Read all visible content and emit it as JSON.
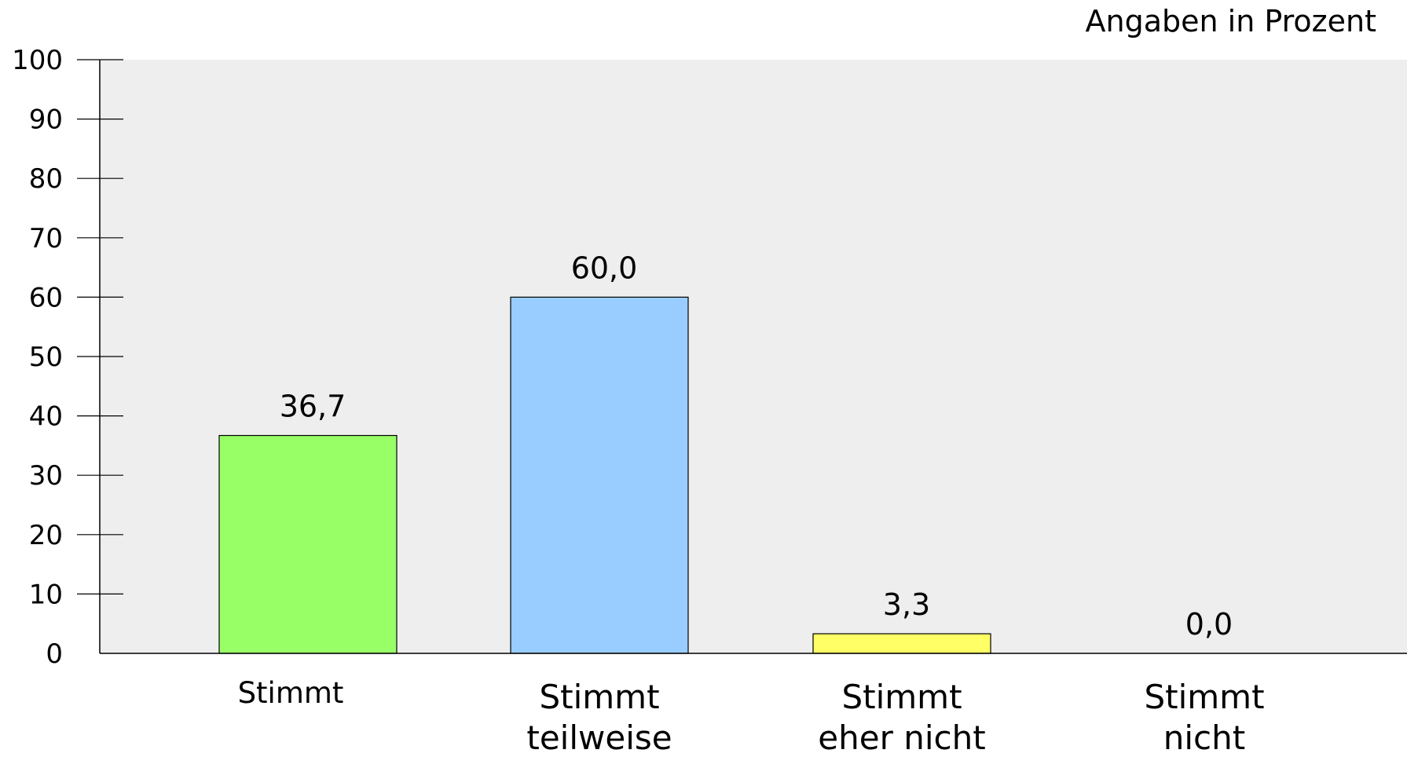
{
  "chart_data": {
    "type": "bar",
    "unit_note": "Angaben in Prozent",
    "categories": [
      [
        "Stimmt"
      ],
      [
        "Stimmt",
        "teilweise"
      ],
      [
        "Stimmt",
        "eher nicht"
      ],
      [
        "Stimmt",
        "nicht"
      ]
    ],
    "values": [
      36.7,
      60.0,
      3.3,
      0.0
    ],
    "value_labels": [
      "36,7",
      "60,0",
      "3,3",
      "0,0"
    ],
    "colors": [
      "#99ff66",
      "#99ccff",
      "#ffff66",
      "#ff9999"
    ],
    "ylim": [
      0,
      100
    ],
    "yticks": [
      0,
      10,
      20,
      30,
      40,
      50,
      60,
      70,
      80,
      90,
      100
    ],
    "grid": false,
    "plot_background": "#eeeeee",
    "legend": "none"
  }
}
